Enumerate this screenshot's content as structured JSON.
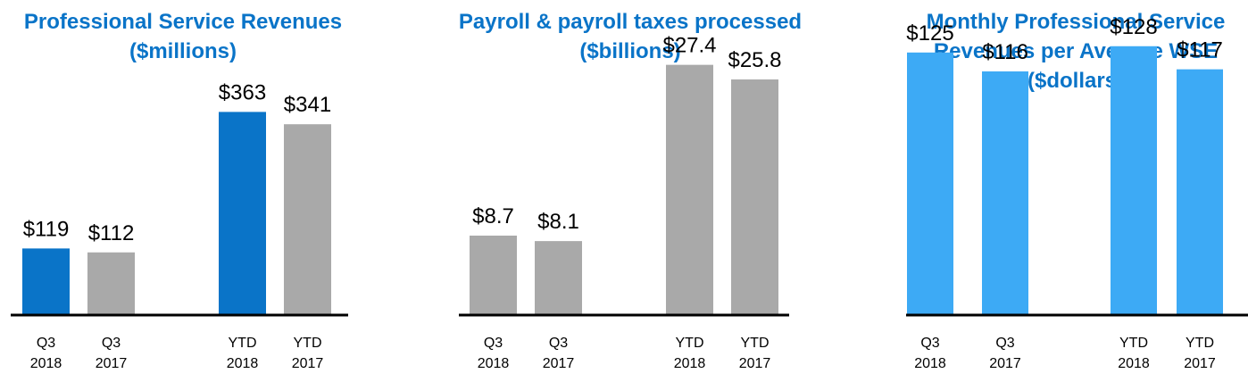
{
  "chart_data": [
    {
      "type": "bar",
      "title": "Professional Service Revenues\n($millions)",
      "title_color": "#0a74c8",
      "categories": [
        [
          "Q3",
          "2018"
        ],
        [
          "Q3",
          "2017"
        ],
        [
          "YTD",
          "2018"
        ],
        [
          "YTD",
          "2017"
        ]
      ],
      "values": [
        119,
        112,
        363,
        341
      ],
      "data_labels": [
        "$119",
        "$112",
        "$363",
        "$341"
      ],
      "bar_colors": [
        "#0a74c8",
        "#a9a9a9",
        "#0a74c8",
        "#a9a9a9"
      ],
      "ylim": [
        0,
        563
      ],
      "grid": false,
      "xlabel": "",
      "ylabel": ""
    },
    {
      "type": "bar",
      "title": "Payroll & payroll taxes processed\n($billions)",
      "title_color": "#0a74c8",
      "categories": [
        [
          "Q3",
          "2018"
        ],
        [
          "Q3",
          "2017"
        ],
        [
          "YTD",
          "2018"
        ],
        [
          "YTD",
          "2017"
        ]
      ],
      "values": [
        8.7,
        8.1,
        27.4,
        25.8
      ],
      "data_labels": [
        "$8.7",
        "$8.1",
        "$27.4",
        "$25.8"
      ],
      "bar_colors": [
        "#a9a9a9",
        "#a9a9a9",
        "#a9a9a9",
        "#a9a9a9"
      ],
      "ylim": [
        0,
        34.5
      ],
      "grid": false,
      "xlabel": "",
      "ylabel": ""
    },
    {
      "type": "bar",
      "title": "Monthly Professional Service\nRevenues per Average WSE\n($dollars)",
      "title_color": "#0a74c8",
      "categories": [
        [
          "Q3",
          "2018"
        ],
        [
          "Q3",
          "2017"
        ],
        [
          "YTD",
          "2018"
        ],
        [
          "YTD",
          "2017"
        ]
      ],
      "values": [
        125,
        116,
        128,
        117
      ],
      "data_labels": [
        "$125",
        "$116",
        "$128",
        "$117"
      ],
      "bar_colors": [
        "#3daaf5",
        "#3daaf5",
        "#3daaf5",
        "#3daaf5"
      ],
      "ylim": [
        0,
        150
      ],
      "grid": false,
      "xlabel": "",
      "ylabel": ""
    }
  ]
}
